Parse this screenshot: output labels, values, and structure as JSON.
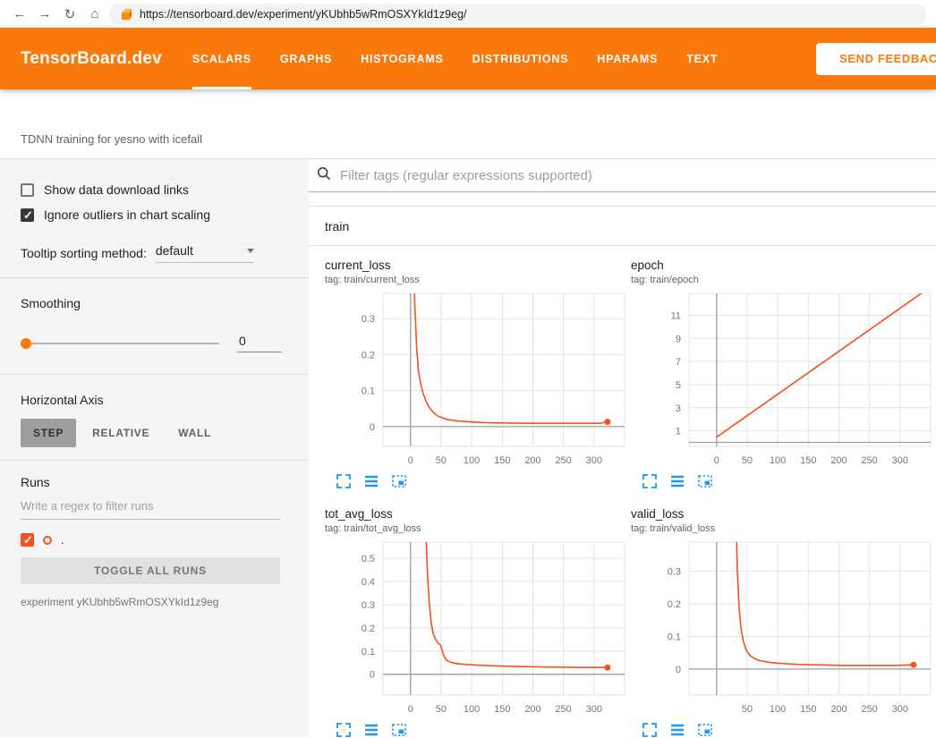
{
  "colors": {
    "header_bg": "#f9790d",
    "accent": "#f9790d",
    "line_color": "#f4511e",
    "icon_blue": "#2196f3"
  },
  "browser": {
    "url": "https://tensorboard.dev/experiment/yKUbhb5wRmOSXYkId1z9eg/",
    "icons": {
      "back": "←",
      "forward": "→",
      "reload": "↻",
      "home": "⌂"
    }
  },
  "header": {
    "brand": "TensorBoard.dev",
    "tabs": [
      {
        "label": "SCALARS",
        "active": true
      },
      {
        "label": "GRAPHS",
        "active": false
      },
      {
        "label": "HISTOGRAMS",
        "active": false
      },
      {
        "label": "DISTRIBUTIONS",
        "active": false
      },
      {
        "label": "HPARAMS",
        "active": false
      },
      {
        "label": "TEXT",
        "active": false
      }
    ],
    "feedback_button": "SEND FEEDBACK"
  },
  "experiment": {
    "title": "TDNN training for yesno with icefall"
  },
  "sidebar": {
    "show_download": {
      "label": "Show data download links",
      "checked": false
    },
    "ignore_outliers": {
      "label": "Ignore outliers in chart scaling",
      "checked": true
    },
    "tooltip_sorting": {
      "label": "Tooltip sorting method:",
      "value": "default"
    },
    "smoothing": {
      "label": "Smoothing",
      "value": "0"
    },
    "horizontal_axis": {
      "label": "Horizontal Axis",
      "options": [
        {
          "label": "STEP",
          "active": true
        },
        {
          "label": "RELATIVE",
          "active": false
        },
        {
          "label": "WALL",
          "active": false
        }
      ]
    },
    "runs": {
      "label": "Runs",
      "filter_placeholder": "Write a regex to filter runs",
      "items": [
        {
          "name": ".",
          "checked": true
        }
      ],
      "toggle_button": "TOGGLE ALL RUNS",
      "experiment_caption": "experiment yKUbhb5wRmOSXYkId1z9eg"
    }
  },
  "main": {
    "filter_placeholder": "Filter tags (regular expressions supported)",
    "section": "train"
  },
  "chart_data": [
    {
      "type": "line",
      "title": "current_loss",
      "tag": "tag: train/current_loss",
      "xlim": [
        -45,
        350
      ],
      "ylim": [
        -0.055,
        0.37
      ],
      "xticks": [
        0,
        50,
        100,
        150,
        200,
        250,
        300
      ],
      "yticks": [
        0,
        0.1,
        0.2,
        0.3
      ],
      "end_marker": true,
      "series": [
        {
          "name": ".",
          "points": [
            [
              4,
              0.6
            ],
            [
              7,
              0.34
            ],
            [
              10,
              0.22
            ],
            [
              13,
              0.155
            ],
            [
              17,
              0.115
            ],
            [
              21,
              0.09
            ],
            [
              26,
              0.068
            ],
            [
              31,
              0.052
            ],
            [
              37,
              0.04
            ],
            [
              44,
              0.03
            ],
            [
              52,
              0.024
            ],
            [
              62,
              0.019
            ],
            [
              75,
              0.016
            ],
            [
              95,
              0.013
            ],
            [
              120,
              0.011
            ],
            [
              150,
              0.01
            ],
            [
              190,
              0.009
            ],
            [
              230,
              0.009
            ],
            [
              270,
              0.009
            ],
            [
              310,
              0.009
            ],
            [
              322,
              0.013
            ]
          ]
        }
      ]
    },
    {
      "type": "line",
      "title": "epoch",
      "tag": "tag: train/epoch",
      "xlim": [
        -45,
        350
      ],
      "ylim": [
        -0.35,
        12.9
      ],
      "xticks": [
        0,
        50,
        100,
        150,
        200,
        250,
        300
      ],
      "yticks": [
        1,
        3,
        5,
        7,
        9,
        11
      ],
      "end_marker": false,
      "series": [
        {
          "name": ".",
          "points": [
            [
              0,
              0.45
            ],
            [
              340,
              13.1
            ]
          ]
        }
      ]
    },
    {
      "type": "line",
      "title": "tot_avg_loss",
      "tag": "tag: train/tot_avg_loss",
      "xlim": [
        -45,
        350
      ],
      "ylim": [
        -0.09,
        0.57
      ],
      "xticks": [
        0,
        50,
        100,
        150,
        200,
        250,
        300
      ],
      "yticks": [
        0,
        0.1,
        0.2,
        0.3,
        0.4,
        0.5
      ],
      "end_marker": true,
      "series": [
        {
          "name": ".",
          "points": [
            [
              25,
              0.62
            ],
            [
              28,
              0.42
            ],
            [
              31,
              0.3
            ],
            [
              34,
              0.22
            ],
            [
              37,
              0.175
            ],
            [
              41,
              0.15
            ],
            [
              45,
              0.135
            ],
            [
              49,
              0.125
            ],
            [
              52,
              0.1
            ],
            [
              55,
              0.075
            ],
            [
              59,
              0.06
            ],
            [
              65,
              0.052
            ],
            [
              75,
              0.046
            ],
            [
              90,
              0.042
            ],
            [
              110,
              0.039
            ],
            [
              140,
              0.036
            ],
            [
              180,
              0.033
            ],
            [
              220,
              0.031
            ],
            [
              260,
              0.03
            ],
            [
              300,
              0.029
            ],
            [
              322,
              0.029
            ]
          ]
        }
      ]
    },
    {
      "type": "line",
      "title": "valid_loss",
      "tag": "tag: train/valid_loss",
      "xlim": [
        -45,
        350
      ],
      "ylim": [
        -0.08,
        0.39
      ],
      "xticks": [
        50,
        100,
        150,
        200,
        250,
        300
      ],
      "yticks": [
        0,
        0.1,
        0.2,
        0.3
      ],
      "end_marker": true,
      "series": [
        {
          "name": ".",
          "points": [
            [
              31,
              0.55
            ],
            [
              34,
              0.3
            ],
            [
              37,
              0.185
            ],
            [
              40,
              0.125
            ],
            [
              44,
              0.085
            ],
            [
              48,
              0.06
            ],
            [
              53,
              0.045
            ],
            [
              60,
              0.034
            ],
            [
              70,
              0.026
            ],
            [
              85,
              0.021
            ],
            [
              105,
              0.017
            ],
            [
              135,
              0.014
            ],
            [
              170,
              0.0125
            ],
            [
              210,
              0.011
            ],
            [
              250,
              0.011
            ],
            [
              290,
              0.011
            ],
            [
              322,
              0.013
            ]
          ]
        }
      ]
    }
  ]
}
